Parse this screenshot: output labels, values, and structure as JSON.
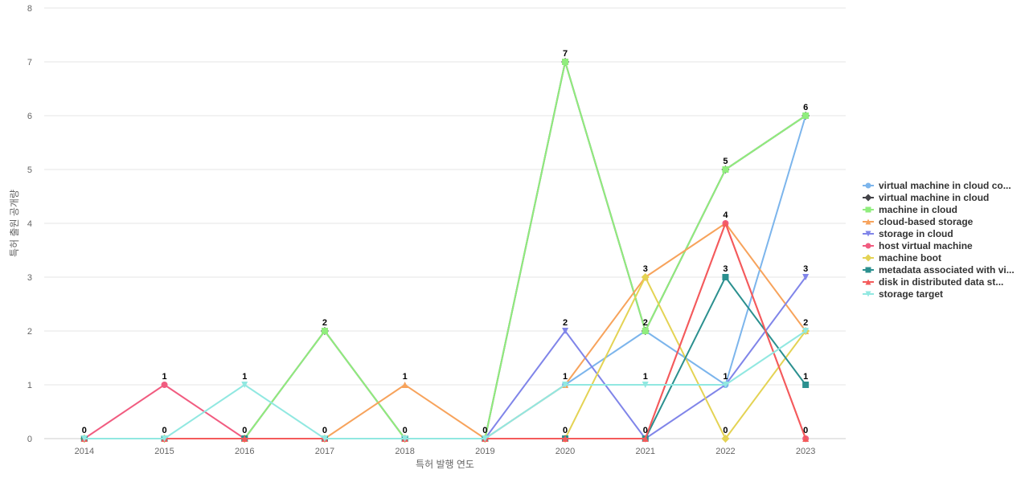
{
  "chart_data": {
    "type": "line",
    "title": "",
    "xlabel": "특허 발행 연도",
    "ylabel": "특허 출원 공개량",
    "ylim": [
      0,
      8
    ],
    "grid": true,
    "legend_position": "right",
    "x": [
      "2014",
      "2015",
      "2016",
      "2017",
      "2018",
      "2019",
      "2020",
      "2021",
      "2022",
      "2023"
    ],
    "yticks": [
      "0",
      "1",
      "2",
      "3",
      "4",
      "5",
      "6",
      "7",
      "8"
    ],
    "series": [
      {
        "name": "virtual machine in cloud co...",
        "color": "#7cb5ec",
        "marker": "circle",
        "values": [
          0,
          0,
          0,
          0,
          0,
          0,
          1,
          2,
          1,
          6
        ]
      },
      {
        "name": "virtual machine in cloud",
        "color": "#434348",
        "marker": "diamond",
        "values": [
          0,
          0,
          0,
          2,
          0,
          0,
          7,
          2,
          5,
          6
        ]
      },
      {
        "name": "machine in cloud",
        "color": "#90ed7d",
        "marker": "square",
        "values": [
          0,
          0,
          0,
          2,
          0,
          0,
          7,
          2,
          5,
          6
        ]
      },
      {
        "name": "cloud-based storage",
        "color": "#f7a35c",
        "marker": "triangle",
        "values": [
          0,
          0,
          0,
          0,
          1,
          0,
          1,
          3,
          4,
          2
        ]
      },
      {
        "name": "storage in cloud",
        "color": "#8085e9",
        "marker": "triangle-down",
        "values": [
          0,
          0,
          0,
          0,
          0,
          0,
          2,
          0,
          1,
          3
        ]
      },
      {
        "name": "host virtual machine",
        "color": "#f15c80",
        "marker": "circle",
        "values": [
          0,
          1,
          0,
          0,
          0,
          0,
          0,
          0,
          4,
          0
        ]
      },
      {
        "name": "machine boot",
        "color": "#e4d354",
        "marker": "diamond",
        "values": [
          0,
          0,
          0,
          0,
          0,
          0,
          0,
          3,
          0,
          2
        ]
      },
      {
        "name": "metadata associated with vi...",
        "color": "#2b908f",
        "marker": "square",
        "values": [
          0,
          0,
          0,
          0,
          0,
          0,
          0,
          0,
          3,
          1
        ]
      },
      {
        "name": "disk in distributed data st...",
        "color": "#f45b5b",
        "marker": "triangle",
        "values": [
          0,
          0,
          0,
          0,
          0,
          0,
          0,
          0,
          4,
          0
        ]
      },
      {
        "name": "storage target",
        "color": "#91e8e1",
        "marker": "triangle-down",
        "values": [
          0,
          0,
          1,
          0,
          0,
          0,
          1,
          1,
          1,
          2
        ]
      }
    ],
    "data_labels": [
      {
        "x": "2014",
        "value": "0"
      },
      {
        "x": "2015",
        "value": "1"
      },
      {
        "x": "2015",
        "value": "0"
      },
      {
        "x": "2016",
        "value": "1"
      },
      {
        "x": "2016",
        "value": "0"
      },
      {
        "x": "2017",
        "value": "2"
      },
      {
        "x": "2017",
        "value": "0"
      },
      {
        "x": "2018",
        "value": "1"
      },
      {
        "x": "2018",
        "value": "0"
      },
      {
        "x": "2019",
        "value": "0"
      },
      {
        "x": "2020",
        "value": "7"
      },
      {
        "x": "2020",
        "value": "2"
      },
      {
        "x": "2020",
        "value": "1"
      },
      {
        "x": "2020",
        "value": "0"
      },
      {
        "x": "2021",
        "value": "3"
      },
      {
        "x": "2021",
        "value": "2"
      },
      {
        "x": "2021",
        "value": "1"
      },
      {
        "x": "2021",
        "value": "0"
      },
      {
        "x": "2022",
        "value": "5"
      },
      {
        "x": "2022",
        "value": "4"
      },
      {
        "x": "2022",
        "value": "3"
      },
      {
        "x": "2022",
        "value": "1"
      },
      {
        "x": "2022",
        "value": "0"
      },
      {
        "x": "2023",
        "value": "6"
      },
      {
        "x": "2023",
        "value": "3"
      },
      {
        "x": "2023",
        "value": "2"
      },
      {
        "x": "2023",
        "value": "1"
      },
      {
        "x": "2023",
        "value": "0"
      }
    ]
  }
}
